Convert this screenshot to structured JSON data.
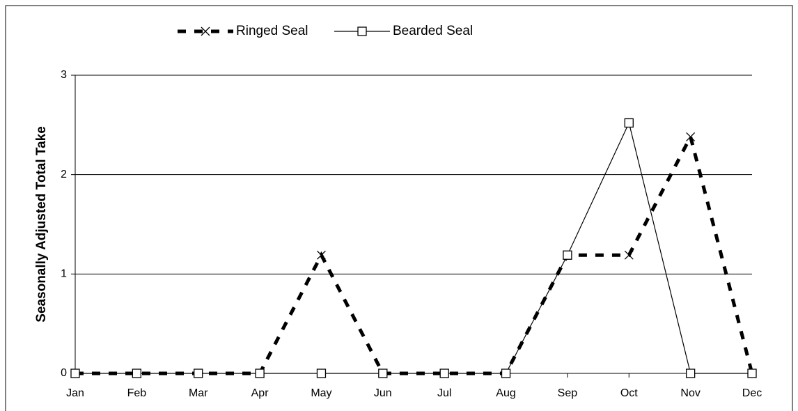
{
  "chart_data": {
    "type": "line",
    "y_label": "Seasonally Adjusted Total Take",
    "categories": [
      "Jan",
      "Feb",
      "Mar",
      "Apr",
      "May",
      "Jun",
      "Jul",
      "Aug",
      "Sep",
      "Oct",
      "Nov",
      "Dec"
    ],
    "series": [
      {
        "name": "Ringed Seal",
        "color": "#000000",
        "values": [
          0,
          0,
          0,
          0,
          1.19,
          0,
          0,
          0,
          1.19,
          1.19,
          2.38,
          0
        ]
      },
      {
        "name": "Bearded Seal",
        "color": "#000000",
        "values": [
          0,
          0,
          0,
          0,
          0,
          0,
          0,
          0,
          1.19,
          2.52,
          0,
          0
        ]
      }
    ],
    "ylim": [
      0,
      3
    ],
    "yticks": [
      0,
      1,
      2,
      3
    ],
    "grid": true,
    "legend": "top"
  }
}
